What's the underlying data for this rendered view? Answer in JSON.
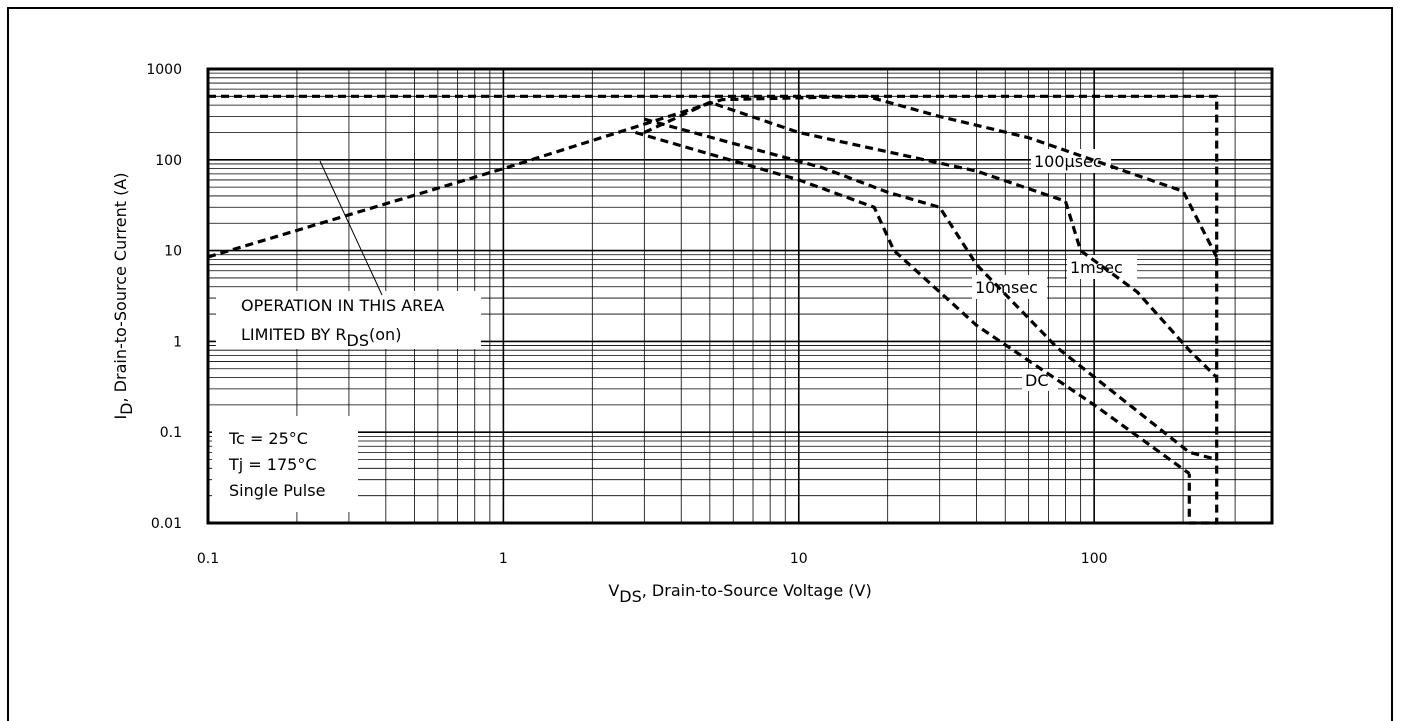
{
  "chart_data": {
    "type": "line",
    "title": "",
    "xlabel": {
      "main": "V",
      "sub": "DS",
      "rest": ", Drain-to-Source Voltage (V)"
    },
    "ylabel": {
      "main": "I",
      "sub": "D",
      "rest": ",  Drain-to-Source Current (A)"
    },
    "xscale": "log",
    "yscale": "log",
    "xlim": [
      0.1,
      400
    ],
    "ylim": [
      0.01,
      1000
    ],
    "grid": true,
    "x_ticks": [
      {
        "value": 0.1,
        "label": "0.1"
      },
      {
        "value": 1,
        "label": "1"
      },
      {
        "value": 10,
        "label": "10"
      },
      {
        "value": 100,
        "label": "100"
      }
    ],
    "y_ticks": [
      {
        "value": 0.01,
        "label": "0.01"
      },
      {
        "value": 0.1,
        "label": "0.1"
      },
      {
        "value": 1,
        "label": "1"
      },
      {
        "value": 10,
        "label": "10"
      },
      {
        "value": 100,
        "label": "100"
      },
      {
        "value": 1000,
        "label": "1000"
      }
    ],
    "series": [
      {
        "name": "100µsec",
        "points": [
          [
            0.1,
            8.5
          ],
          [
            1,
            80
          ],
          [
            5.5,
            460
          ],
          [
            17,
            500
          ],
          [
            30,
            300
          ],
          [
            60,
            175
          ],
          [
            200,
            45
          ],
          [
            260,
            8.5
          ]
        ]
      },
      {
        "name": "1msec",
        "points": [
          [
            3,
            200
          ],
          [
            5,
            430
          ],
          [
            10,
            200
          ],
          [
            40,
            75
          ],
          [
            80,
            35
          ],
          [
            90,
            10
          ],
          [
            140,
            3.5
          ],
          [
            210,
            0.8
          ],
          [
            260,
            0.4
          ]
        ]
      },
      {
        "name": "10msec",
        "points": [
          [
            3,
            280
          ],
          [
            12,
            82
          ],
          [
            20,
            44
          ],
          [
            30,
            30
          ],
          [
            40,
            7
          ],
          [
            75,
            0.85
          ],
          [
            210,
            0.06
          ],
          [
            260,
            0.05
          ]
        ]
      },
      {
        "name": "DC",
        "points": [
          [
            2.8,
            200
          ],
          [
            10,
            60
          ],
          [
            18,
            30
          ],
          [
            21,
            10
          ],
          [
            40,
            1.5
          ],
          [
            100,
            0.2
          ],
          [
            210,
            0.035
          ]
        ]
      },
      {
        "name": "",
        "points": [
          [
            0.1,
            500
          ],
          [
            260,
            500
          ],
          [
            260,
            0.01
          ],
          [
            210,
            0.01
          ],
          [
            210,
            0.035
          ]
        ]
      }
    ],
    "annotations": {
      "rds_line1": "OPERATION IN THIS AREA",
      "rds_line2_main": "LIMITED BY R",
      "rds_line2_sub": "DS",
      "rds_line2_rest": "(on)",
      "label_100us": "100µsec",
      "label_1ms": "1msec",
      "label_10ms": "10msec",
      "label_dc": "DC",
      "cond1": "Tc = 25°C",
      "cond2": "Tj = 175°C",
      "cond3": "Single Pulse"
    }
  }
}
